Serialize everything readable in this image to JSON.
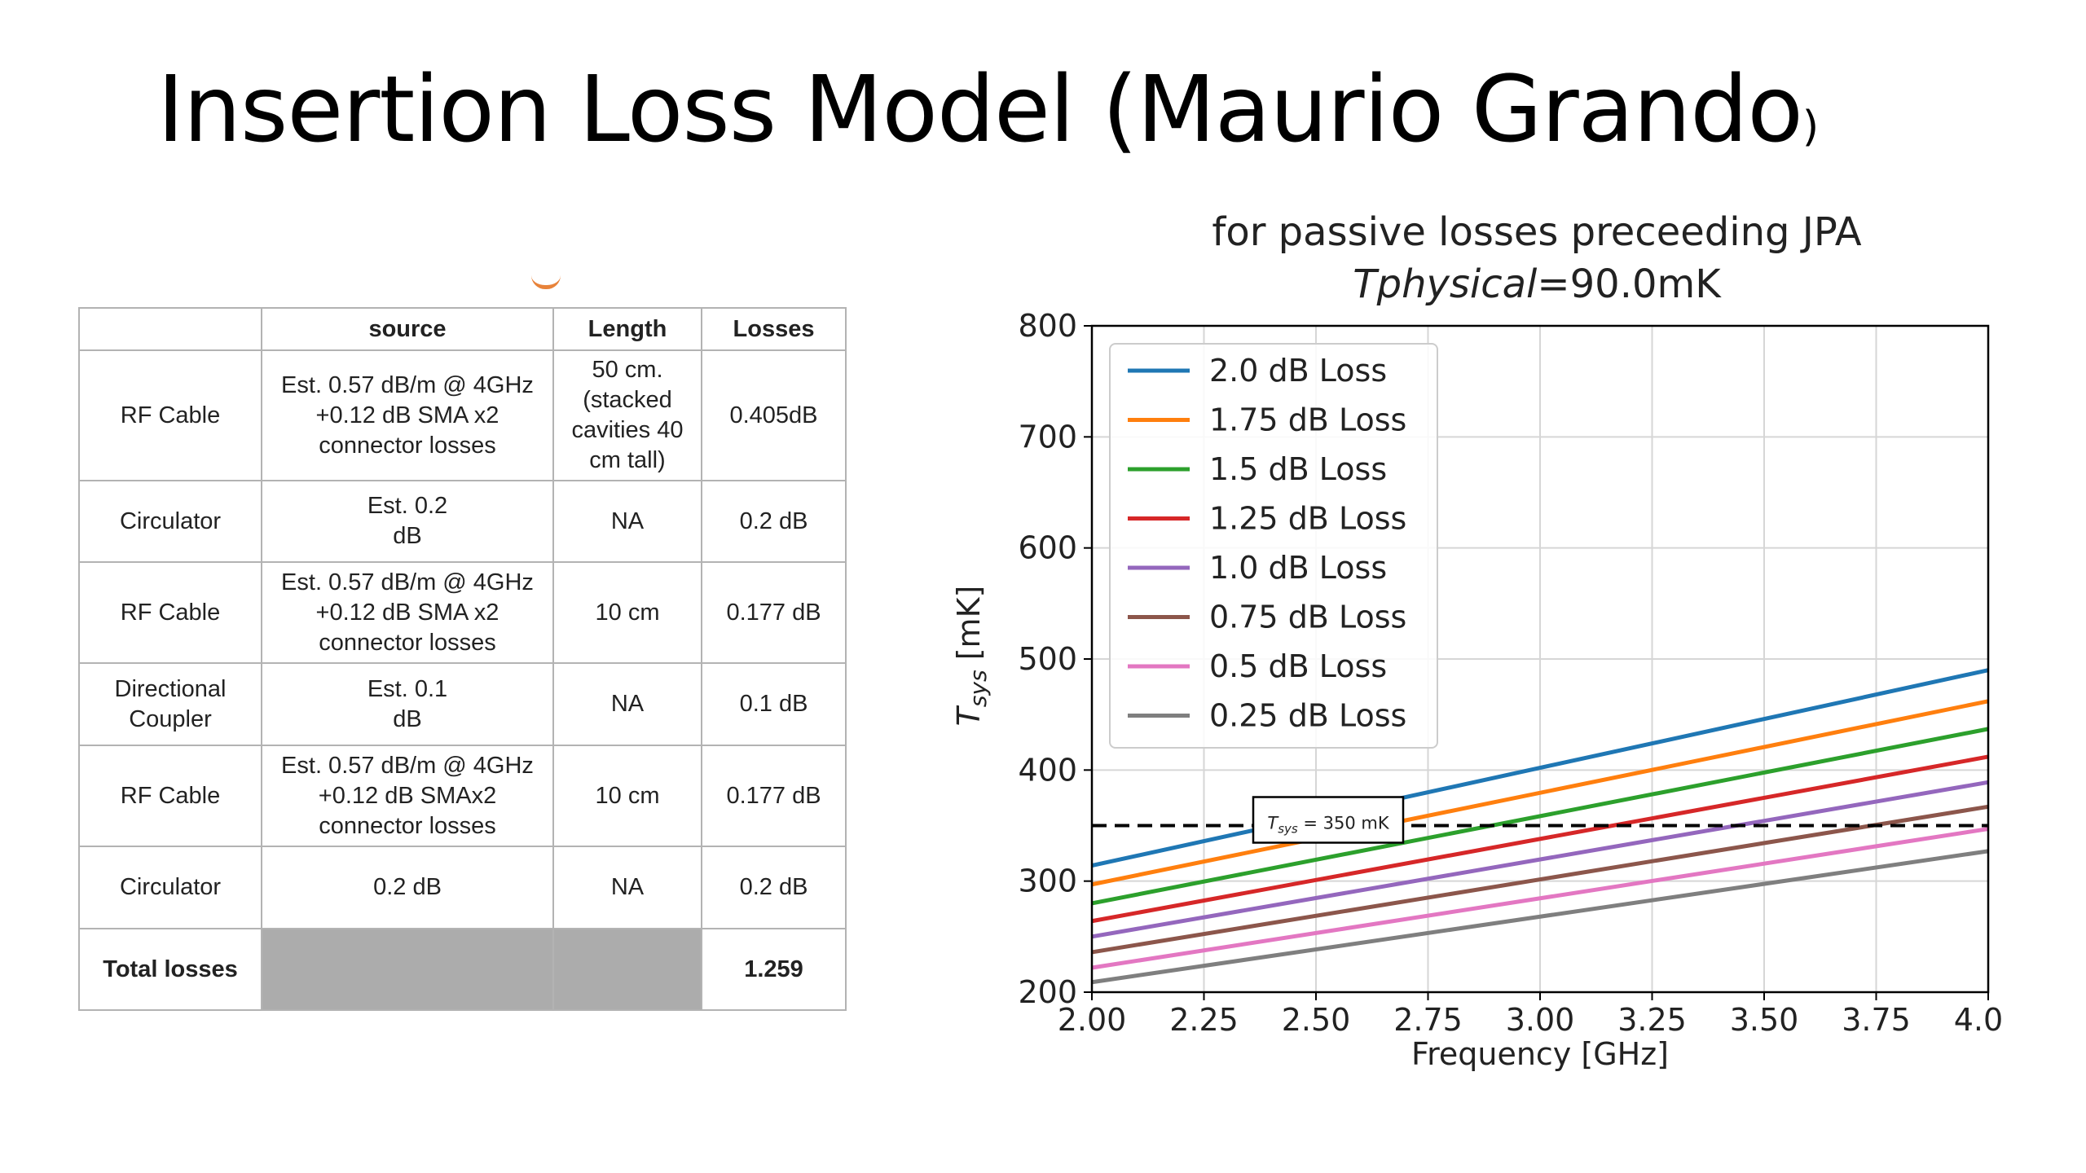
{
  "slide": {
    "title": "Insertion Loss Model (Maurio Grando",
    "title_paren": ")"
  },
  "table": {
    "headers": [
      "",
      "source",
      "Length",
      "Losses"
    ],
    "rows": [
      {
        "component": "RF Cable",
        "source": "Est. 0.57 dB/m @ 4GHz +0.12 dB SMA x2 connector losses",
        "length": "50 cm. (stacked cavities 40 cm tall)",
        "losses": "0.405dB"
      },
      {
        "component": "Circulator",
        "source": "Est. 0.2 dB",
        "length": "NA",
        "losses": "0.2 dB"
      },
      {
        "component": "RF Cable",
        "source": "Est. 0.57 dB/m @ 4GHz +0.12 dB SMA x2 connector losses",
        "length": "10 cm",
        "losses": "0.177 dB"
      },
      {
        "component": "Directional Coupler",
        "source": "Est. 0.1 dB",
        "length": "NA",
        "losses": "0.1 dB"
      },
      {
        "component": "RF Cable",
        "source": "Est. 0.57 dB/m @ 4GHz +0.12 dB SMAx2 connector losses",
        "length": "10 cm",
        "losses": "0.177 dB"
      },
      {
        "component": "Circulator",
        "source": "0.2 dB",
        "length": "NA",
        "losses": "0.2 dB"
      }
    ],
    "total": {
      "label": "Total losses",
      "value": "1.259"
    }
  },
  "chart_data": {
    "type": "line",
    "title_line1": "for passive losses preceeding JPA",
    "title_line2_italic": "Tphysical",
    "title_line2_rest": "=90.0mK",
    "xlabel": "Frequency [GHz]",
    "ylabel_main": "T",
    "ylabel_sub": "sys",
    "ylabel_unit": " [mK]",
    "xlim": [
      2.0,
      4.0
    ],
    "ylim": [
      200,
      800
    ],
    "xticks": [
      "2.00",
      "2.25",
      "2.50",
      "2.75",
      "3.00",
      "3.25",
      "3.50",
      "3.75",
      "4.00"
    ],
    "yticks": [
      "200",
      "300",
      "400",
      "500",
      "600",
      "700",
      "800"
    ],
    "grid": true,
    "legend_position": "upper-left",
    "x": [
      2.0,
      4.0
    ],
    "series": [
      {
        "name": "2.0 dB Loss",
        "color": "#1f77b4",
        "values": [
          314,
          490
        ]
      },
      {
        "name": "1.75 dB Loss",
        "color": "#ff7f0e",
        "values": [
          297,
          462
        ]
      },
      {
        "name": "1.5 dB Loss",
        "color": "#2ca02c",
        "values": [
          280,
          437
        ]
      },
      {
        "name": "1.25 dB Loss",
        "color": "#d62728",
        "values": [
          264,
          412
        ]
      },
      {
        "name": "1.0 dB Loss",
        "color": "#9467bd",
        "values": [
          250,
          389
        ]
      },
      {
        "name": "0.75 dB Loss",
        "color": "#8c564b",
        "values": [
          236,
          367
        ]
      },
      {
        "name": "0.5 dB Loss",
        "color": "#e377c2",
        "values": [
          222,
          347
        ]
      },
      {
        "name": "0.25 dB Loss",
        "color": "#7f7f7f",
        "values": [
          209,
          327
        ]
      }
    ],
    "threshold": {
      "value": 350,
      "label_main": "T",
      "label_sub": "sys",
      "label_rest": " = 350 mK"
    }
  }
}
